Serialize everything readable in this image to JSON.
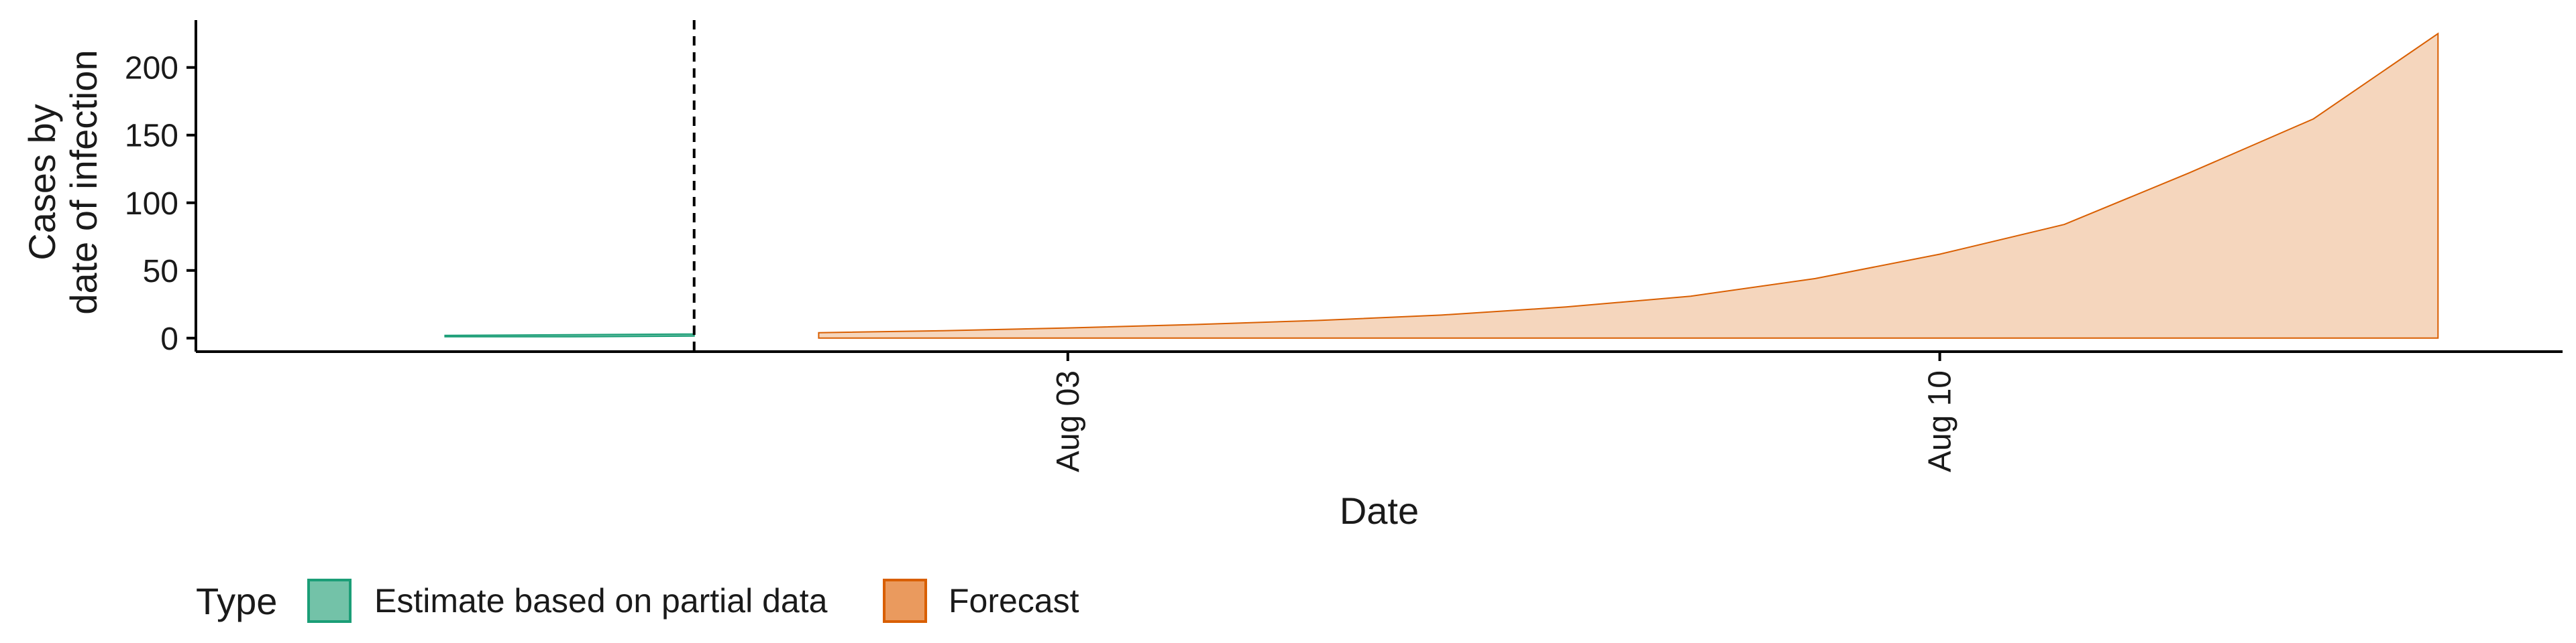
{
  "chart_data": {
    "type": "area",
    "xlabel": "Date",
    "ylabel_lines": [
      "Cases by",
      "date of infection"
    ],
    "x_ticks": [
      {
        "date": "2020-08-03",
        "label": "Aug 03"
      },
      {
        "date": "2020-08-10",
        "label": "Aug 10"
      }
    ],
    "y_ticks": [
      0,
      50,
      100,
      150,
      200
    ],
    "xlim": [
      "2020-07-27",
      "2020-08-15"
    ],
    "ylim": [
      -10,
      235
    ],
    "grid": false,
    "cutoff_date": "2020-07-31",
    "series": [
      {
        "name": "Estimate based on partial data",
        "color": "#1b9e77",
        "fill": "#73c2a8",
        "points": [
          {
            "date": "2020-07-29",
            "lower": 1,
            "upper": 2
          },
          {
            "date": "2020-07-30",
            "lower": 1,
            "upper": 2.5
          },
          {
            "date": "2020-07-31",
            "lower": 1.5,
            "upper": 3
          }
        ]
      },
      {
        "name": "Forecast",
        "color": "#d95f02",
        "fill": "#f5d6bd",
        "points": [
          {
            "date": "2020-08-01",
            "lower": 0,
            "upper": 4
          },
          {
            "date": "2020-08-02",
            "lower": 0,
            "upper": 5.5
          },
          {
            "date": "2020-08-03",
            "lower": 0,
            "upper": 7.5
          },
          {
            "date": "2020-08-04",
            "lower": 0,
            "upper": 10
          },
          {
            "date": "2020-08-05",
            "lower": 0,
            "upper": 13
          },
          {
            "date": "2020-08-06",
            "lower": 0,
            "upper": 17
          },
          {
            "date": "2020-08-07",
            "lower": 0,
            "upper": 23
          },
          {
            "date": "2020-08-08",
            "lower": 0,
            "upper": 31
          },
          {
            "date": "2020-08-09",
            "lower": 0,
            "upper": 44
          },
          {
            "date": "2020-08-10",
            "lower": 0,
            "upper": 62
          },
          {
            "date": "2020-08-11",
            "lower": 0,
            "upper": 84
          },
          {
            "date": "2020-08-12",
            "lower": 0,
            "upper": 122
          },
          {
            "date": "2020-08-13",
            "lower": 0,
            "upper": 162
          },
          {
            "date": "2020-08-14",
            "lower": 0,
            "upper": 225
          }
        ]
      }
    ],
    "legend": {
      "position": "bottom",
      "title": "Type",
      "entries": [
        {
          "label": "Estimate based on partial data",
          "fill": "#73c2a8",
          "border": "#1b9e77"
        },
        {
          "label": "Forecast",
          "fill": "#ea9a5e",
          "border": "#d95f02"
        }
      ]
    }
  }
}
